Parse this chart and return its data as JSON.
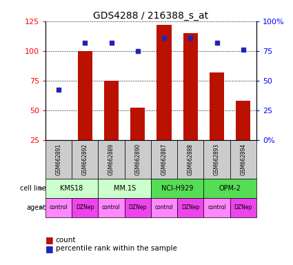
{
  "title": "GDS4288 / 216388_s_at",
  "samples": [
    "GSM662891",
    "GSM662892",
    "GSM662889",
    "GSM662890",
    "GSM662887",
    "GSM662888",
    "GSM662893",
    "GSM662894"
  ],
  "counts": [
    25,
    100,
    75,
    52,
    122,
    115,
    82,
    58
  ],
  "percentile_ranks": [
    42,
    82,
    82,
    75,
    86,
    86,
    82,
    76
  ],
  "ylim_left": [
    25,
    125
  ],
  "ylim_right": [
    0,
    100
  ],
  "yticks_left": [
    25,
    50,
    75,
    100,
    125
  ],
  "yticks_right": [
    0,
    25,
    50,
    75,
    100
  ],
  "ytick_labels_right": [
    "0",
    "25",
    "50",
    "75",
    "100%"
  ],
  "ytick_labels_left": [
    "25",
    "50",
    "75",
    "100",
    "125"
  ],
  "bar_color": "#bb1100",
  "dot_color": "#2222bb",
  "cell_line_groups": [
    {
      "label": "KMS18",
      "start": 0,
      "end": 1,
      "color": "#ccffcc"
    },
    {
      "label": "MM.1S",
      "start": 2,
      "end": 3,
      "color": "#ccffcc"
    },
    {
      "label": "NCI-H929",
      "start": 4,
      "end": 5,
      "color": "#55dd55"
    },
    {
      "label": "OPM-2",
      "start": 6,
      "end": 7,
      "color": "#55dd55"
    }
  ],
  "agents": [
    "control",
    "DZNep",
    "control",
    "DZNep",
    "control",
    "DZNep",
    "control",
    "DZNep"
  ],
  "agent_colors": [
    "#ff88ff",
    "#ee44ee",
    "#ff88ff",
    "#ee44ee",
    "#ff88ff",
    "#ee44ee",
    "#ff88ff",
    "#ee44ee"
  ],
  "gsm_bg_color": "#cccccc",
  "bg_color": "#ffffff",
  "bar_width": 0.55
}
